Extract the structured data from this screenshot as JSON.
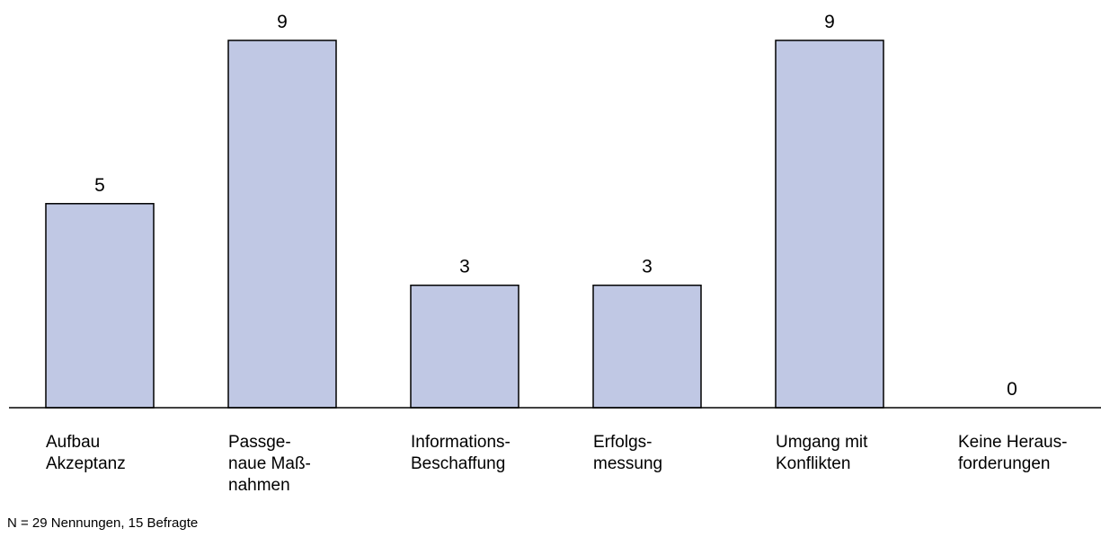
{
  "chart_data": {
    "type": "bar",
    "categories": [
      [
        "Aufbau",
        "Akzeptanz"
      ],
      [
        "Passge-",
        "naue Maß-",
        "nahmen"
      ],
      [
        "Informations-",
        "Beschaffung"
      ],
      [
        "Erfolgs-",
        "messung"
      ],
      [
        "Umgang mit",
        "Konflikten"
      ],
      [
        "Keine Heraus-",
        "forderungen"
      ]
    ],
    "values": [
      5,
      9,
      3,
      3,
      9,
      0
    ],
    "value_labels": [
      "5",
      "9",
      "3",
      "3",
      "9",
      "0"
    ],
    "ylim": [
      0,
      9
    ],
    "grid": false,
    "colors": {
      "bar_fill": "#c0c8e4",
      "bar_stroke": "#000000"
    }
  },
  "footnote": "N = 29 Nennungen, 15 Befragte"
}
